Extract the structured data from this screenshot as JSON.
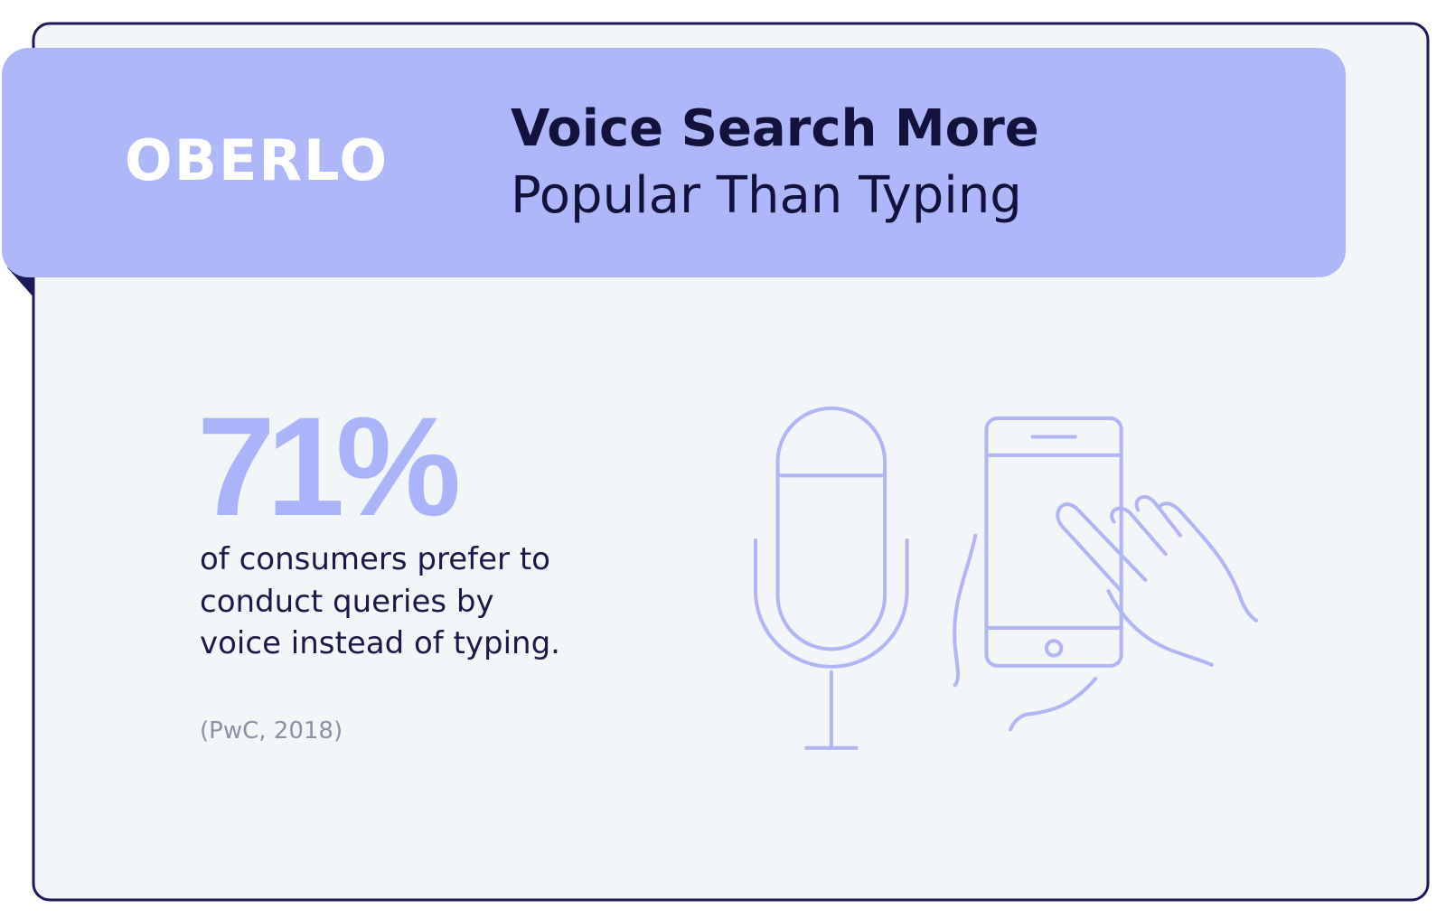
{
  "header": {
    "logo": "OBERLO",
    "title_line_1": "Voice Search More",
    "title_line_2": "Popular Than Typing"
  },
  "stat": {
    "figure": "71%",
    "lines": [
      "of consumers prefer to",
      "conduct queries by",
      "voice instead of typing."
    ],
    "source": "(PwC, 2018)"
  }
}
